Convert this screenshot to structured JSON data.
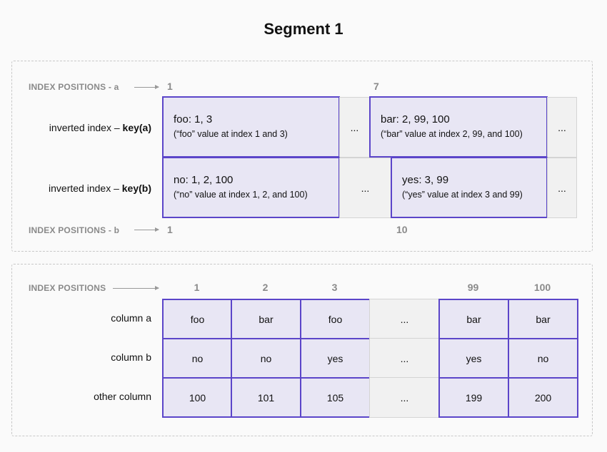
{
  "title": "Segment 1",
  "inverted": {
    "index_a_label": "INDEX POSITIONS - a",
    "index_a_positions": [
      "1",
      "7"
    ],
    "index_b_label": "INDEX POSITIONS - b",
    "index_b_positions": [
      "1",
      "10"
    ],
    "row_a": {
      "label_prefix": "inverted index – ",
      "label_key": "key(a)",
      "cells": [
        {
          "main": "foo: 1, 3",
          "sub": "(“foo” value at index 1 and 3)"
        },
        {
          "main": "bar: 2, 99, 100",
          "sub": "(“bar” value at index 2, 99, and 100)"
        }
      ]
    },
    "row_b": {
      "label_prefix": "inverted index – ",
      "label_key": "key(b)",
      "cells": [
        {
          "main": "no: 1, 2, 100",
          "sub": "(“no” value at index 1, 2, and 100)"
        },
        {
          "main": "yes: 3, 99",
          "sub": "(“yes” value at index 3 and 99)"
        }
      ]
    },
    "ellipsis": "..."
  },
  "table": {
    "index_label": "INDEX POSITIONS",
    "positions": [
      "1",
      "2",
      "3",
      "",
      "99",
      "100"
    ],
    "rows": [
      {
        "label": "column a",
        "values": [
          "foo",
          "bar",
          "foo",
          "...",
          "bar",
          "bar"
        ]
      },
      {
        "label": "column b",
        "values": [
          "no",
          "no",
          "yes",
          "...",
          "yes",
          "no"
        ]
      },
      {
        "label": "other column",
        "values": [
          "100",
          "101",
          "105",
          "...",
          "199",
          "200"
        ]
      }
    ]
  },
  "colors": {
    "accent": "#5b45c9",
    "cell_fill": "#e8e6f4",
    "gap_fill": "#f1f1f1"
  }
}
